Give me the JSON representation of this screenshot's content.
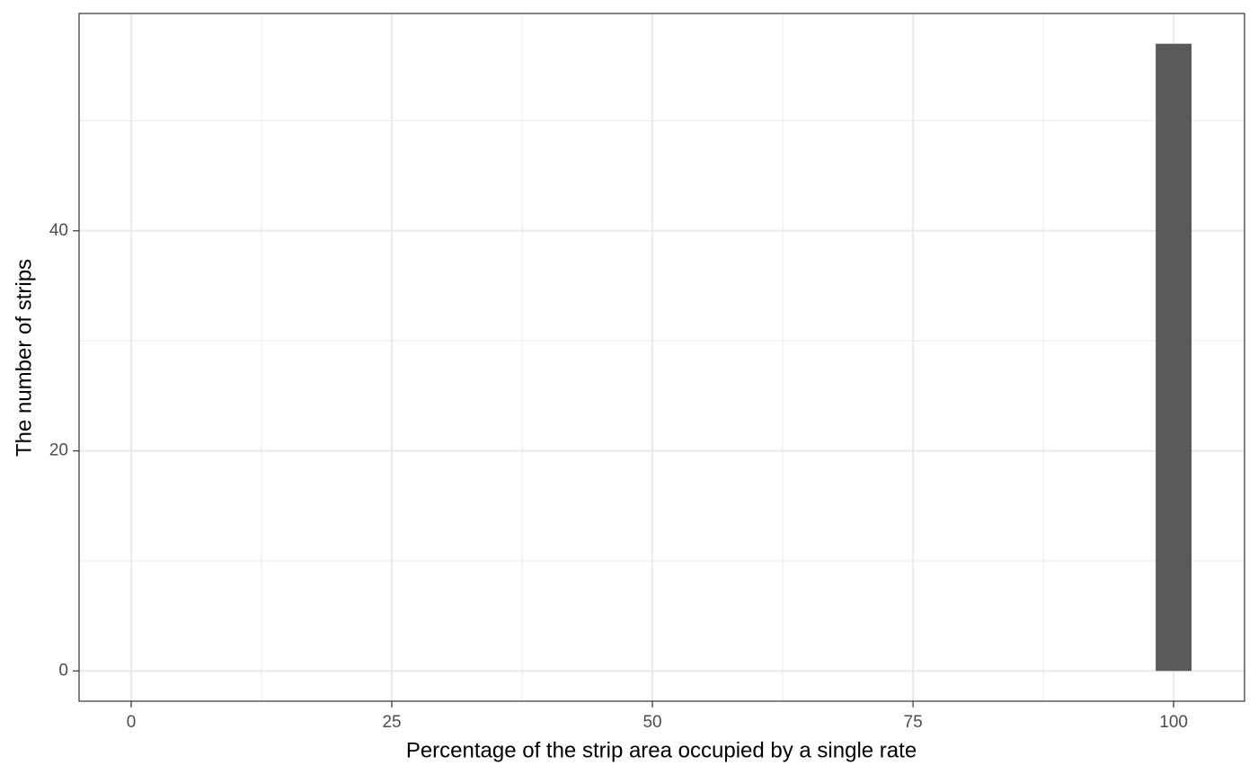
{
  "chart_data": {
    "type": "histogram",
    "xlabel": "Percentage of the strip area occupied by a single rate",
    "ylabel": "The number of strips",
    "bins": [
      98.28,
      101.72
    ],
    "values": [
      57
    ],
    "color": "#595959",
    "xlim": [
      -5,
      106.8
    ],
    "xticks": [
      0,
      25,
      50,
      75,
      100
    ],
    "x_minor_ticks": [
      12.5,
      37.5,
      62.5,
      87.5
    ],
    "ylim": [
      -2.75,
      59.75
    ],
    "yticks": [
      0,
      20,
      40
    ],
    "y_minor_ticks": [
      10,
      30,
      50
    ],
    "grid": true
  }
}
